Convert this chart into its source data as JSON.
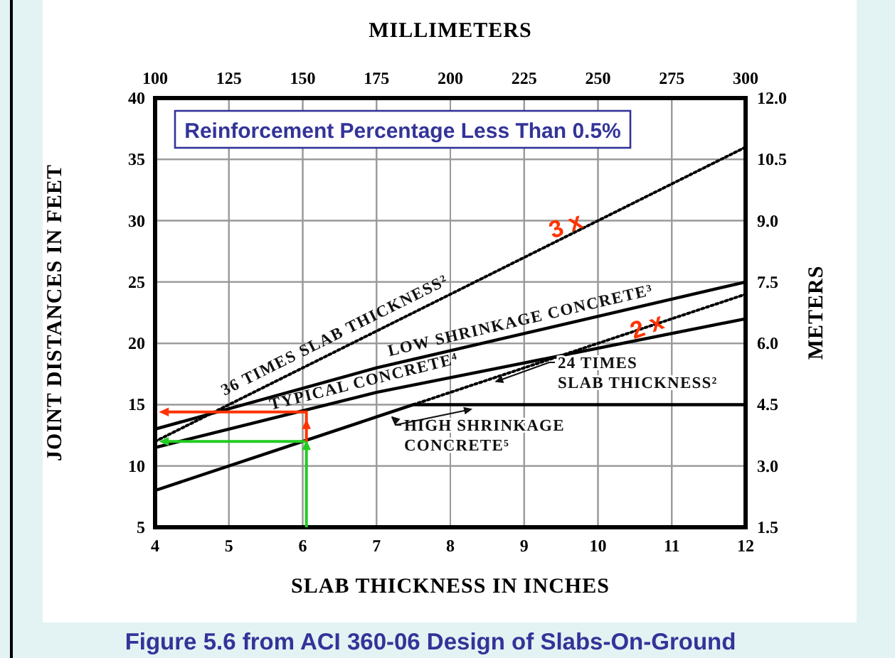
{
  "chart_data": {
    "type": "line",
    "title": "Reinforcement Percentage Less Than 0.5%",
    "xlabel": "SLAB THICKNESS IN INCHES",
    "ylabel": "JOINT DISTANCES IN FEET",
    "y2label": "METERS",
    "x2label": "MILLIMETERS",
    "xlim": [
      4,
      12
    ],
    "xticks": [
      4,
      5,
      6,
      7,
      8,
      9,
      10,
      11,
      12
    ],
    "ylim": [
      5,
      40
    ],
    "yticks": [
      5,
      10,
      15,
      20,
      25,
      30,
      35,
      40
    ],
    "x2lim": [
      100,
      300
    ],
    "x2ticks": [
      100,
      125,
      150,
      175,
      200,
      225,
      250,
      275,
      300
    ],
    "y2lim": [
      1.5,
      12.0
    ],
    "y2ticks": [
      {
        "value": 1.5,
        "label": "1.5"
      },
      {
        "value": 3,
        "label": "3.0"
      },
      {
        "value": 4.5,
        "label": "4.5"
      },
      {
        "value": 6,
        "label": "6.0"
      },
      {
        "value": 7.5,
        "label": "7.5"
      },
      {
        "value": 9,
        "label": "9.0"
      },
      {
        "value": 10.5,
        "label": "10.5"
      },
      {
        "value": 12,
        "label": "12.0"
      }
    ],
    "grid": true,
    "marker": "none",
    "series": [
      {
        "name": "36 TIMES SLAB THICKNESS²",
        "color": "#000000",
        "line_style": "dotted",
        "x": [
          4,
          12
        ],
        "values": [
          12,
          36
        ]
      },
      {
        "name": "LOW SHRINKAGE CONCRETE³",
        "color": "#000000",
        "line_style": "solid",
        "x": [
          4,
          7,
          12
        ],
        "values": [
          13,
          18,
          25
        ]
      },
      {
        "name": "TYPICAL CONCRETE⁴",
        "color": "#000000",
        "line_style": "solid",
        "x": [
          4,
          7,
          12
        ],
        "values": [
          11.5,
          16,
          22
        ]
      },
      {
        "name": "24 TIMES SLAB THICKNESS²",
        "color": "#000000",
        "line_style": "dotted",
        "x": [
          7.5,
          12
        ],
        "values": [
          15,
          24
        ]
      },
      {
        "name": "HIGH SHRINKAGE CONCRETE⁵",
        "color": "#000000",
        "line_style": "solid",
        "x": [
          4,
          7,
          7.5,
          12
        ],
        "values": [
          8,
          14,
          15,
          15
        ]
      }
    ],
    "annotations": [
      {
        "text": "3 x",
        "x": 9.6,
        "y": 29
      },
      {
        "text": "2 x",
        "x": 10.7,
        "y": 20.8
      },
      "Figure 5.6 from ACI 360-06 Design of Slabs-On-Ground"
    ]
  }
}
